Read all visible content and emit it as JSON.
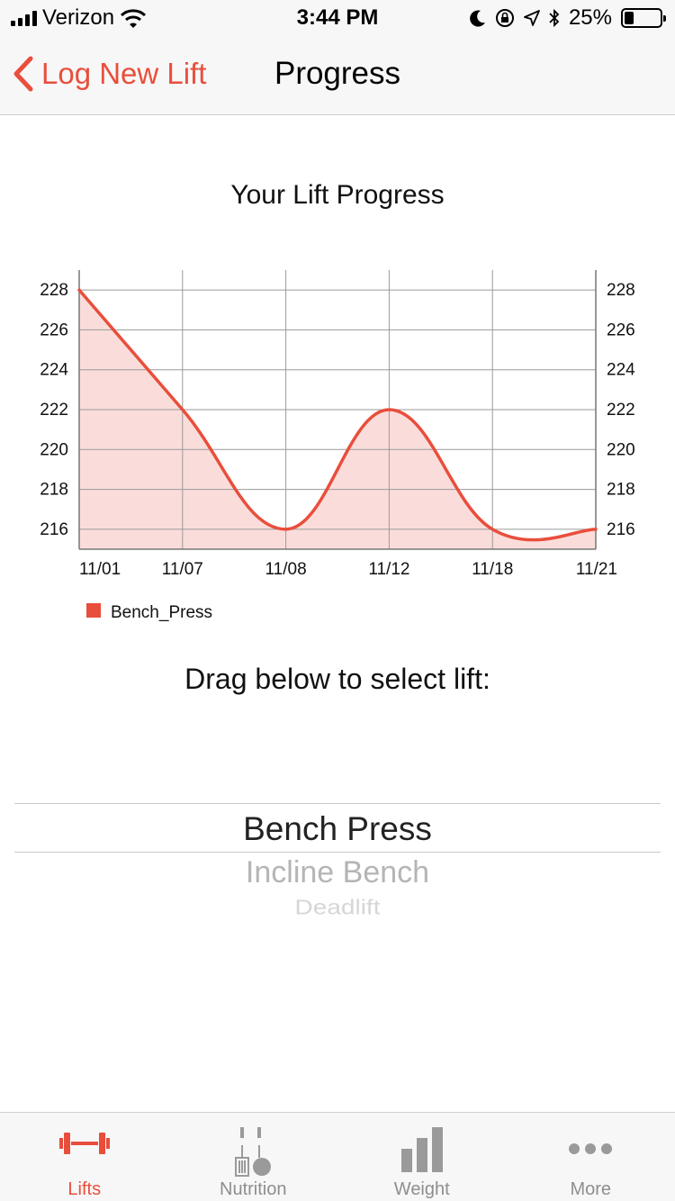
{
  "status_bar": {
    "carrier": "Verizon",
    "time": "3:44 PM",
    "battery": "25%",
    "battery_level": 0.25,
    "icons": [
      "signal-icon",
      "wifi-icon",
      "moon-icon",
      "rotation-lock-icon",
      "location-icon",
      "bluetooth-icon",
      "battery-icon"
    ]
  },
  "nav": {
    "back_label": "Log New Lift",
    "title": "Progress"
  },
  "chart_title": "Your Lift Progress",
  "chart_data": {
    "type": "area",
    "categories": [
      "11/01",
      "11/07",
      "11/08",
      "11/12",
      "11/18",
      "11/21"
    ],
    "series": [
      {
        "name": "Bench_Press",
        "values": [
          228,
          222,
          216,
          222,
          216,
          216
        ],
        "color": "#e94e3c",
        "fill": "#f9d7d4"
      }
    ],
    "yticks": [
      216,
      218,
      220,
      222,
      224,
      226,
      228
    ],
    "ylim": [
      215,
      229
    ],
    "grid": true,
    "legend": "bottom-left",
    "axes": "left-and-right"
  },
  "drag_label": "Drag below to select lift:",
  "picker": {
    "options": [
      "Bench Press",
      "Incline Bench",
      "Deadlift"
    ],
    "selected": "Bench Press"
  },
  "tabs": [
    {
      "label": "Lifts",
      "icon": "dumbbell-icon",
      "active": true
    },
    {
      "label": "Nutrition",
      "icon": "nutrition-icon",
      "active": false
    },
    {
      "label": "Weight",
      "icon": "bar-chart-icon",
      "active": false
    },
    {
      "label": "More",
      "icon": "more-dots-icon",
      "active": false
    }
  ],
  "colors": {
    "accent": "#e94e3c",
    "inactive": "#8e8e8e",
    "bar_background": "#f7f7f7"
  }
}
